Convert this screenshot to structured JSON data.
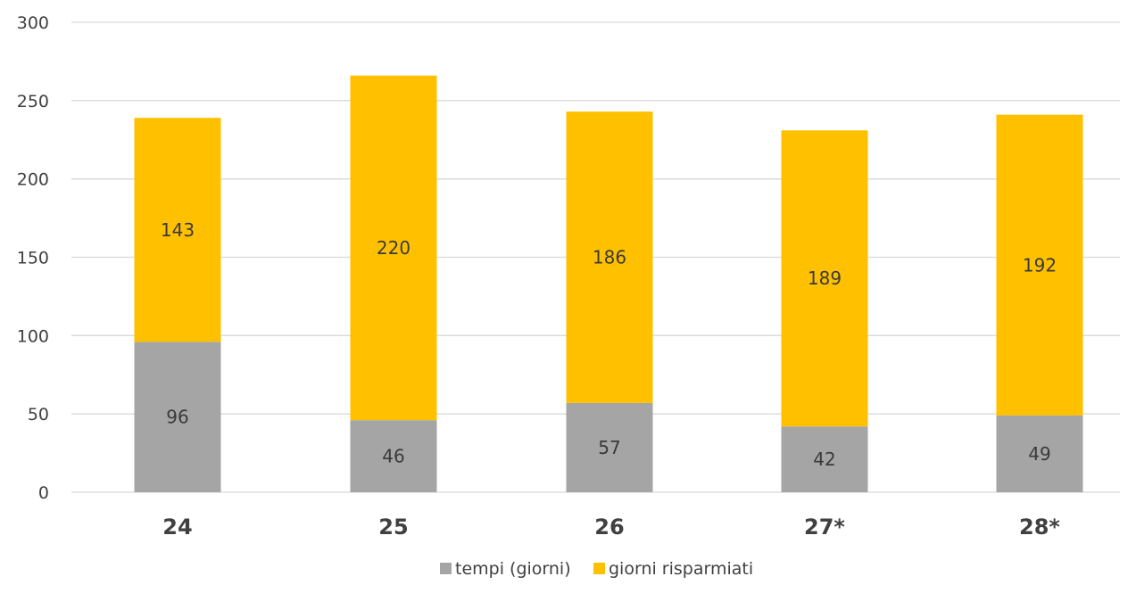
{
  "chart_data": {
    "type": "bar",
    "stacked": true,
    "categories": [
      "24",
      "25",
      "26",
      "27*",
      "28*"
    ],
    "series": [
      {
        "name": "tempi (giorni)",
        "values": [
          96,
          46,
          57,
          42,
          49
        ],
        "color": "#a5a5a5"
      },
      {
        "name": "giorni risparmiati",
        "values": [
          143,
          220,
          186,
          189,
          192
        ],
        "color": "#ffc000"
      }
    ],
    "y_ticks": [
      "0",
      "50",
      "100",
      "150",
      "200",
      "250",
      "300"
    ],
    "ylim": [
      0,
      300
    ],
    "grid": true,
    "legend": "bottom-center",
    "data_labels": true
  }
}
